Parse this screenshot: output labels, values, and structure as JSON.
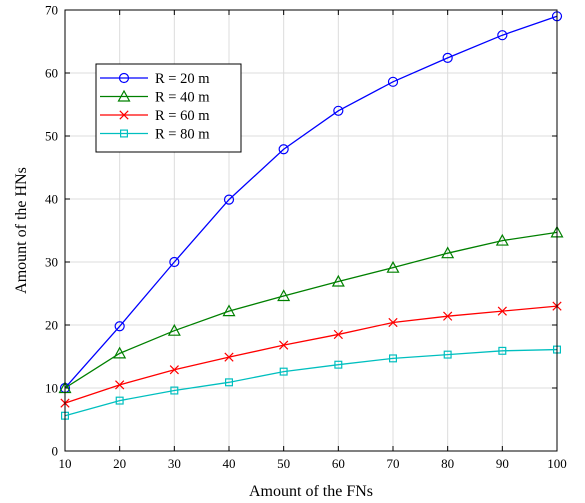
{
  "chart_data": {
    "type": "line",
    "title": "",
    "xlabel": "Amount of the FNs",
    "ylabel": "Amount of the HNs",
    "xlim": [
      10,
      100
    ],
    "ylim": [
      0,
      70
    ],
    "xticks": [
      10,
      20,
      30,
      40,
      50,
      60,
      70,
      80,
      90,
      100
    ],
    "yticks": [
      0,
      10,
      20,
      30,
      40,
      50,
      60,
      70
    ],
    "grid": true,
    "legend_position": "upper-left",
    "x": [
      10,
      20,
      30,
      40,
      50,
      60,
      70,
      80,
      90,
      100
    ],
    "series": [
      {
        "name": "R = 20 m",
        "color": "#0000ff",
        "marker": "circle",
        "values": [
          10,
          19.8,
          30,
          39.9,
          47.9,
          54,
          58.6,
          62.4,
          66,
          69
        ]
      },
      {
        "name": "R = 40 m",
        "color": "#008000",
        "marker": "triangle",
        "values": [
          10,
          15.5,
          19.1,
          22.2,
          24.6,
          26.9,
          29.1,
          31.4,
          33.4,
          34.7
        ]
      },
      {
        "name": "R = 60 m",
        "color": "#ff0000",
        "marker": "x",
        "values": [
          7.6,
          10.5,
          12.9,
          14.9,
          16.8,
          18.5,
          20.4,
          21.4,
          22.2,
          23
        ]
      },
      {
        "name": "R = 80 m",
        "color": "#00bfbf",
        "marker": "square",
        "values": [
          5.6,
          8,
          9.6,
          10.9,
          12.6,
          13.7,
          14.7,
          15.3,
          15.9,
          16.1
        ]
      }
    ]
  }
}
